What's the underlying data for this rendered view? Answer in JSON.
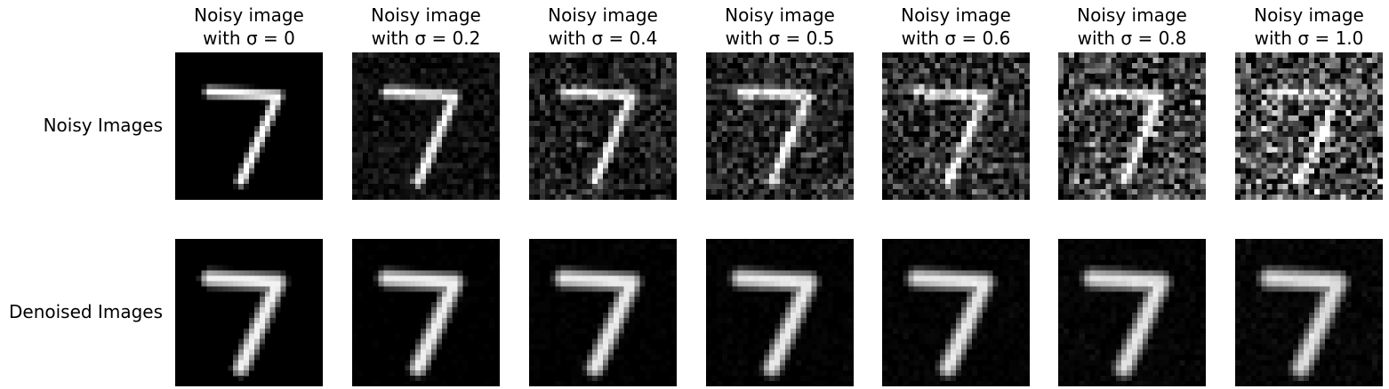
{
  "columns": [
    {
      "title_line1": "Noisy image",
      "title_line2": "with σ = 0",
      "sigma": 0.0
    },
    {
      "title_line1": "Noisy image",
      "title_line2": "with σ = 0.2",
      "sigma": 0.2
    },
    {
      "title_line1": "Noisy image",
      "title_line2": "with σ = 0.4",
      "sigma": 0.4
    },
    {
      "title_line1": "Noisy image",
      "title_line2": "with σ = 0.5",
      "sigma": 0.5
    },
    {
      "title_line1": "Noisy image",
      "title_line2": "with σ = 0.6",
      "sigma": 0.6
    },
    {
      "title_line1": "Noisy image",
      "title_line2": "with σ = 0.8",
      "sigma": 0.8
    },
    {
      "title_line1": "Noisy image",
      "title_line2": "with σ = 1.0",
      "sigma": 1.0
    }
  ],
  "rows": {
    "noisy_label": "Noisy Images",
    "denoised_label": "Denoised Images"
  }
}
